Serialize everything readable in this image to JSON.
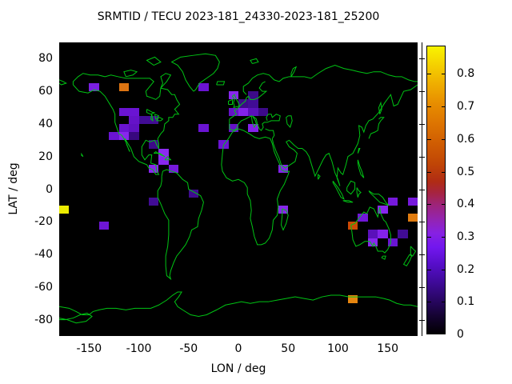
{
  "title": "SRMTID / TECU 2023-181_24330-2023-181_25200",
  "axes": {
    "x": {
      "label": "LON / deg",
      "ticks": [
        -150,
        -100,
        -50,
        0,
        50,
        100,
        150
      ],
      "range": [
        -180,
        180
      ]
    },
    "y": {
      "label": "LAT / deg",
      "ticks": [
        80,
        60,
        40,
        20,
        0,
        -20,
        -40,
        -60,
        -80
      ],
      "range": [
        -90,
        90
      ]
    }
  },
  "map": {
    "background": "#000000",
    "coastline_color": "#00c414"
  },
  "colorbar": {
    "min": 0,
    "max": 0.887,
    "tick_values": [
      0,
      0.1,
      0.2,
      0.3,
      0.4,
      0.5,
      0.6,
      0.7,
      0.8
    ],
    "tick_labels": [
      "0",
      "0.1",
      "0.2",
      "0.3",
      "0.4",
      "0.5",
      "0.6",
      "0.7",
      "0.8"
    ],
    "gradient": [
      {
        "at": 0.0,
        "color": "#020003"
      },
      {
        "at": 0.06,
        "color": "#140330"
      },
      {
        "at": 0.12,
        "color": "#2a0666"
      },
      {
        "at": 0.18,
        "color": "#3f0a9a"
      },
      {
        "at": 0.24,
        "color": "#560ec8"
      },
      {
        "at": 0.3,
        "color": "#7217ee"
      },
      {
        "at": 0.35,
        "color": "#8721e2"
      },
      {
        "at": 0.4,
        "color": "#9424ae"
      },
      {
        "at": 0.45,
        "color": "#9e2478"
      },
      {
        "at": 0.49,
        "color": "#a62440"
      },
      {
        "at": 0.53,
        "color": "#b02c14"
      },
      {
        "at": 0.59,
        "color": "#c04506"
      },
      {
        "at": 0.66,
        "color": "#cf5c02"
      },
      {
        "at": 0.73,
        "color": "#dd7401"
      },
      {
        "at": 0.8,
        "color": "#e78d00"
      },
      {
        "at": 0.87,
        "color": "#efae00"
      },
      {
        "at": 0.94,
        "color": "#f5d300"
      },
      {
        "at": 1.0,
        "color": "#f9f400"
      }
    ]
  },
  "chart_data": {
    "type": "heatmap",
    "title": "SRMTID / TECU 2023-181_24330-2023-181_25200",
    "xlabel": "LON / deg",
    "ylabel": "LAT / deg",
    "xlim": [
      -180,
      180
    ],
    "ylim": [
      -90,
      90
    ],
    "colorbar_range": [
      0,
      0.887
    ],
    "bin_size": {
      "lon": 10,
      "lat": 5
    },
    "points": [
      {
        "lon": -145,
        "lat": 62.5,
        "value": 0.25,
        "color": "#7a1fe0"
      },
      {
        "lon": -115,
        "lat": 62.5,
        "value": 0.65,
        "color": "#de7512"
      },
      {
        "lon": -115,
        "lat": 47.5,
        "value": 0.22,
        "color": "#6a14d2"
      },
      {
        "lon": -105,
        "lat": 47.5,
        "value": 0.22,
        "color": "#6a14d2"
      },
      {
        "lon": -105,
        "lat": 42.5,
        "value": 0.21,
        "color": "#6512c8"
      },
      {
        "lon": -95,
        "lat": 42.5,
        "value": 0.15,
        "color": "#410c94"
      },
      {
        "lon": -85,
        "lat": 42.5,
        "value": 0.15,
        "color": "#410c94"
      },
      {
        "lon": -115,
        "lat": 37.5,
        "value": 0.22,
        "color": "#6a14d2"
      },
      {
        "lon": -105,
        "lat": 37.5,
        "value": 0.2,
        "color": "#5f11c0"
      },
      {
        "lon": -125,
        "lat": 32.5,
        "value": 0.22,
        "color": "#6a14d2"
      },
      {
        "lon": -115,
        "lat": 32.5,
        "value": 0.27,
        "color": "#8826ee"
      },
      {
        "lon": -105,
        "lat": 32.5,
        "value": 0.13,
        "color": "#38087e"
      },
      {
        "lon": -85,
        "lat": 27.5,
        "value": 0.14,
        "color": "#3c0a88"
      },
      {
        "lon": -75,
        "lat": 22.5,
        "value": 0.28,
        "color": "#8c2bf0"
      },
      {
        "lon": -75,
        "lat": 17.5,
        "value": 0.27,
        "color": "#8826ee"
      },
      {
        "lon": -85,
        "lat": 12.5,
        "value": 0.27,
        "color": "#8826ee"
      },
      {
        "lon": -65,
        "lat": 12.5,
        "value": 0.24,
        "color": "#7619dc"
      },
      {
        "lon": -35,
        "lat": 62.5,
        "value": 0.22,
        "color": "#6a14d2"
      },
      {
        "lon": -5,
        "lat": 57.5,
        "value": 0.27,
        "color": "#8826ee"
      },
      {
        "lon": 15,
        "lat": 57.5,
        "value": 0.14,
        "color": "#3c0a88"
      },
      {
        "lon": 5,
        "lat": 52.5,
        "value": 0.14,
        "color": "#3c0a88"
      },
      {
        "lon": 15,
        "lat": 52.5,
        "value": 0.15,
        "color": "#410c94"
      },
      {
        "lon": -5,
        "lat": 47.5,
        "value": 0.21,
        "color": "#6512c8"
      },
      {
        "lon": 5,
        "lat": 47.5,
        "value": 0.26,
        "color": "#8322ea"
      },
      {
        "lon": 15,
        "lat": 47.5,
        "value": 0.19,
        "color": "#5a10ba"
      },
      {
        "lon": 25,
        "lat": 47.5,
        "value": 0.14,
        "color": "#3c0a88"
      },
      {
        "lon": -35,
        "lat": 37.5,
        "value": 0.22,
        "color": "#6a14d2"
      },
      {
        "lon": -5,
        "lat": 37.5,
        "value": 0.21,
        "color": "#6512c8"
      },
      {
        "lon": 15,
        "lat": 37.5,
        "value": 0.26,
        "color": "#8322ea"
      },
      {
        "lon": -15,
        "lat": 27.5,
        "value": 0.22,
        "color": "#6a14d2"
      },
      {
        "lon": 45,
        "lat": 12.5,
        "value": 0.26,
        "color": "#8322ea"
      },
      {
        "lon": 45,
        "lat": -12.5,
        "value": 0.26,
        "color": "#8726ec"
      },
      {
        "lon": -175,
        "lat": -12.5,
        "value": 0.85,
        "color": "#ebeb00"
      },
      {
        "lon": -135,
        "lat": -22.5,
        "value": 0.22,
        "color": "#6e16d6"
      },
      {
        "lon": -85,
        "lat": -7.5,
        "value": 0.15,
        "color": "#410c94"
      },
      {
        "lon": -45,
        "lat": -2.5,
        "value": 0.15,
        "color": "#3f0b90"
      },
      {
        "lon": 125,
        "lat": -17.5,
        "value": 0.23,
        "color": "#7017d8"
      },
      {
        "lon": 115,
        "lat": -22.5,
        "value": 0.57,
        "color": "#cc4a04"
      },
      {
        "lon": 145,
        "lat": -12.5,
        "value": 0.27,
        "color": "#8826ee"
      },
      {
        "lon": 155,
        "lat": -7.5,
        "value": 0.24,
        "color": "#7619dc"
      },
      {
        "lon": 175,
        "lat": -7.5,
        "value": 0.24,
        "color": "#7619dc"
      },
      {
        "lon": 175,
        "lat": -17.5,
        "value": 0.66,
        "color": "#e07c10"
      },
      {
        "lon": 135,
        "lat": -27.5,
        "value": 0.19,
        "color": "#5a10ba"
      },
      {
        "lon": 145,
        "lat": -27.5,
        "value": 0.26,
        "color": "#8322ea"
      },
      {
        "lon": 165,
        "lat": -27.5,
        "value": 0.15,
        "color": "#410c94"
      },
      {
        "lon": 135,
        "lat": -32.5,
        "value": 0.27,
        "color": "#8826ee"
      },
      {
        "lon": 155,
        "lat": -32.5,
        "value": 0.22,
        "color": "#6a14d2"
      },
      {
        "lon": 115,
        "lat": -67.5,
        "value": 0.63,
        "color": "#e6850f"
      }
    ]
  }
}
